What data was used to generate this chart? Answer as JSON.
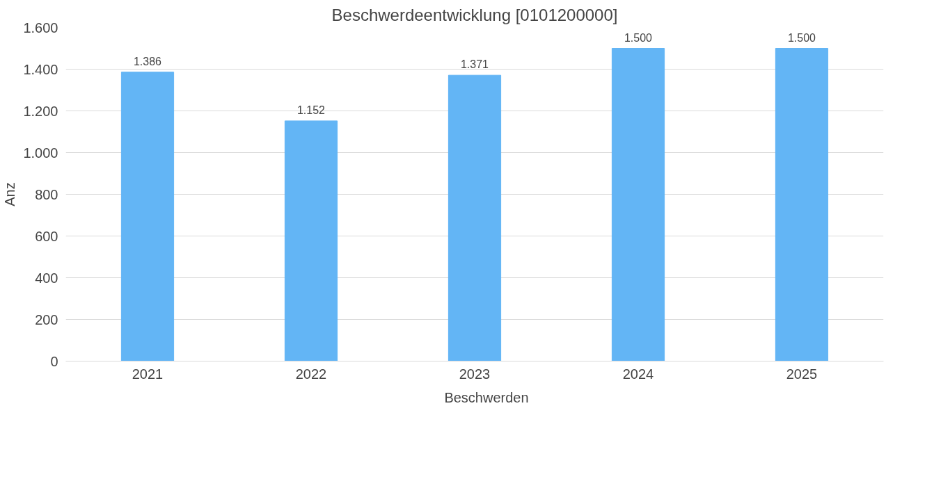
{
  "chart_data": {
    "type": "bar",
    "title": "Beschwerdeentwicklung [0101200000]",
    "ylabel": "Anz",
    "categories": [
      "2021",
      "2022",
      "2023",
      "2024",
      "2025"
    ],
    "series": [
      {
        "name": "Beschwerden",
        "color": "#63b5f5",
        "values": [
          1386,
          1152,
          1371,
          1500,
          1500
        ],
        "value_labels": [
          "1.386",
          "1.152",
          "1.371",
          "1.500",
          "1.500"
        ]
      }
    ],
    "ylim": [
      0,
      1600
    ],
    "yticks": [
      0,
      200,
      400,
      600,
      800,
      {
        "value": 1000,
        "label": "1.000"
      },
      {
        "value": 1200,
        "label": "1.200"
      },
      {
        "value": 1400,
        "label": "1.400"
      },
      {
        "value": 1600,
        "label": "1.600"
      }
    ],
    "grid": "y",
    "legend": "bottom"
  }
}
